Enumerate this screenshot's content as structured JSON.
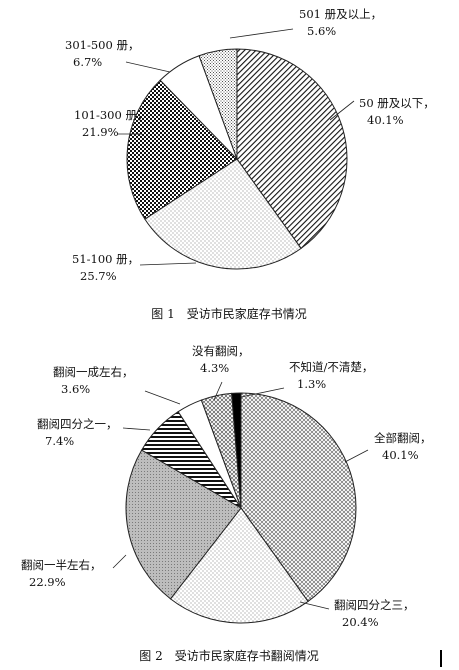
{
  "chart_data": [
    {
      "type": "pie",
      "title": "图 1　受访市民家庭存书情况",
      "slices": [
        {
          "label": "50 册及以下，",
          "value_label": "40.1%",
          "value": 40.1,
          "pattern": "diag-dense"
        },
        {
          "label": "51-100 册，",
          "value_label": "25.7%",
          "value": 25.7,
          "pattern": "dots-light"
        },
        {
          "label": "101-300 册，",
          "value_label": "21.9%",
          "value": 21.9,
          "pattern": "checker"
        },
        {
          "label": "301-500 册，",
          "value_label": "6.7%",
          "value": 6.7,
          "pattern": "white"
        },
        {
          "label": "501 册及以上，",
          "value_label": "5.6%",
          "value": 5.6,
          "pattern": "grid-fine"
        }
      ]
    },
    {
      "type": "pie",
      "title": "图 2　受访市民家庭存书翻阅情况",
      "slices": [
        {
          "label": "全部翻阅，",
          "value_label": "40.1%",
          "value": 40.1,
          "pattern": "crosshatch"
        },
        {
          "label": "翻阅四分之三，",
          "value_label": "20.4%",
          "value": 20.4,
          "pattern": "dots-light"
        },
        {
          "label": "翻阅一半左右，",
          "value_label": "22.9%",
          "value": 22.9,
          "pattern": "grey-fine"
        },
        {
          "label": "翻阅四分之一，",
          "value_label": "7.4%",
          "value": 7.4,
          "pattern": "hlines"
        },
        {
          "label": "翻阅一成左右，",
          "value_label": "3.6%",
          "value": 3.6,
          "pattern": "white"
        },
        {
          "label": "没有翻阅，",
          "value_label": "4.3%",
          "value": 4.3,
          "pattern": "diamond"
        },
        {
          "label": "不知道/不清楚，",
          "value_label": "1.3%",
          "value": 1.3,
          "pattern": "black"
        }
      ]
    }
  ]
}
